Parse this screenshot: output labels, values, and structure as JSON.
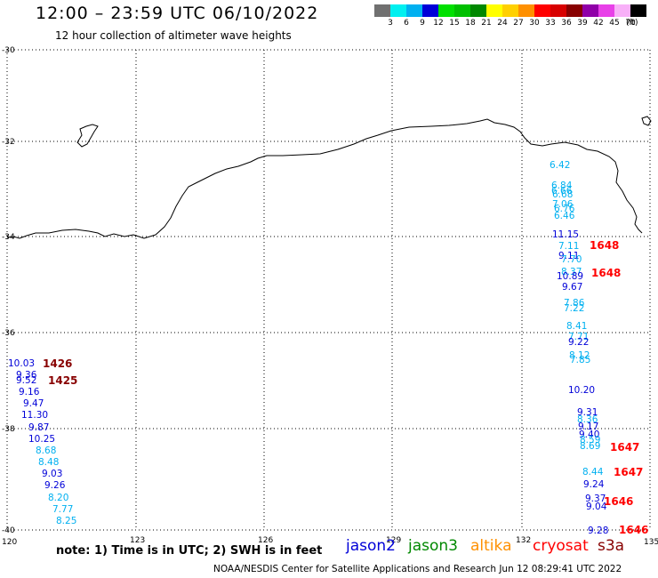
{
  "header": {
    "title": "12:00 – 23:59 UTC 06/10/2022",
    "subtitle": "12 hour collection of altimeter wave heights"
  },
  "colorbar": {
    "swatches": [
      "#707070",
      "#00f0f0",
      "#00b0f0",
      "#0000d8",
      "#00e000",
      "#00c000",
      "#008800",
      "#ffff00",
      "#ffd000",
      "#ff9000",
      "#ff0000",
      "#d80000",
      "#880000",
      "#9000a8",
      "#e840e8",
      "#f8b0f8",
      "#000000"
    ],
    "labels": [
      "3",
      "6",
      "9",
      "12",
      "15",
      "18",
      "21",
      "24",
      "27",
      "30",
      "33",
      "36",
      "39",
      "42",
      "45",
      "70"
    ],
    "unit": "(ft)"
  },
  "axes": {
    "y_labels": [
      "-30",
      "-32",
      "-34",
      "-36",
      "-38",
      "-40"
    ],
    "x_labels": [
      "120",
      "123",
      "126",
      "129",
      "132",
      "135"
    ]
  },
  "observations": [
    {
      "v": "10.03",
      "c": "#0000d8"
    },
    {
      "v": "9.36",
      "c": "#0000d8"
    },
    {
      "v": "9.52",
      "c": "#0000d8"
    },
    {
      "v": "9.16",
      "c": "#0000d8"
    },
    {
      "v": "9.47",
      "c": "#0000d8"
    },
    {
      "v": "11.30",
      "c": "#0000d8"
    },
    {
      "v": "9.87",
      "c": "#0000d8"
    },
    {
      "v": "10.25",
      "c": "#0000d8"
    },
    {
      "v": "8.68",
      "c": "#00b0f0"
    },
    {
      "v": "8.48",
      "c": "#00b0f0"
    },
    {
      "v": "9.03",
      "c": "#0000d8"
    },
    {
      "v": "9.26",
      "c": "#0000d8"
    },
    {
      "v": "8.20",
      "c": "#00b0f0"
    },
    {
      "v": "7.77",
      "c": "#00b0f0"
    },
    {
      "v": "8.25",
      "c": "#00b0f0"
    },
    {
      "v": "6.42",
      "c": "#00b0f0"
    },
    {
      "v": "6.84",
      "c": "#00b0f0"
    },
    {
      "v": "6.66",
      "c": "#00b0f0"
    },
    {
      "v": "6.68",
      "c": "#00b0f0"
    },
    {
      "v": "7.06",
      "c": "#00b0f0"
    },
    {
      "v": "6.76",
      "c": "#00b0f0"
    },
    {
      "v": "6.46",
      "c": "#00b0f0"
    },
    {
      "v": "11.15",
      "c": "#0000d8"
    },
    {
      "v": "7.11",
      "c": "#00b0f0"
    },
    {
      "v": "9.11",
      "c": "#0000d8"
    },
    {
      "v": "7.70",
      "c": "#00b0f0"
    },
    {
      "v": "8.37",
      "c": "#00b0f0"
    },
    {
      "v": "10.89",
      "c": "#0000d8"
    },
    {
      "v": "9.67",
      "c": "#0000d8"
    },
    {
      "v": "7.86",
      "c": "#00b0f0"
    },
    {
      "v": "7.22",
      "c": "#00b0f0"
    },
    {
      "v": "8.41",
      "c": "#00b0f0"
    },
    {
      "v": "7.71",
      "c": "#00b0f0"
    },
    {
      "v": "9.22",
      "c": "#0000d8"
    },
    {
      "v": "8.12",
      "c": "#00b0f0"
    },
    {
      "v": "7.85",
      "c": "#00b0f0"
    },
    {
      "v": "10.20",
      "c": "#0000d8"
    },
    {
      "v": "9.31",
      "c": "#0000d8"
    },
    {
      "v": "8.36",
      "c": "#00b0f0"
    },
    {
      "v": "9.17",
      "c": "#0000d8"
    },
    {
      "v": "9.40",
      "c": "#0000d8"
    },
    {
      "v": "8.59",
      "c": "#00b0f0"
    },
    {
      "v": "8.69",
      "c": "#00b0f0"
    },
    {
      "v": "8.44",
      "c": "#00b0f0"
    },
    {
      "v": "9.24",
      "c": "#0000d8"
    },
    {
      "v": "9.37",
      "c": "#0000d8"
    },
    {
      "v": "9.04",
      "c": "#0000d8"
    },
    {
      "v": "9.28",
      "c": "#0000d8"
    }
  ],
  "passes": [
    {
      "t": "1426",
      "c": "#880000"
    },
    {
      "t": "1425",
      "c": "#880000"
    },
    {
      "t": "1648",
      "c": "#ff0000"
    },
    {
      "t": "1648",
      "c": "#ff0000"
    },
    {
      "t": "1647",
      "c": "#ff0000"
    },
    {
      "t": "1647",
      "c": "#ff0000"
    },
    {
      "t": "1646",
      "c": "#ff0000"
    },
    {
      "t": "1646",
      "c": "#ff0000"
    }
  ],
  "note": "note:  1) Time is in UTC; 2) SWH is in feet",
  "satellites": [
    {
      "name": "jason2",
      "color": "#0000d8"
    },
    {
      "name": "jason3",
      "color": "#008800"
    },
    {
      "name": "altika",
      "color": "#ff9000"
    },
    {
      "name": "cryosat",
      "color": "#ff0000"
    },
    {
      "name": "s3a",
      "color": "#880000"
    }
  ],
  "footer": "NOAA/NESDIS Center for Satellite Applications and Research    Jun 12 08:29:41 UTC 2022"
}
